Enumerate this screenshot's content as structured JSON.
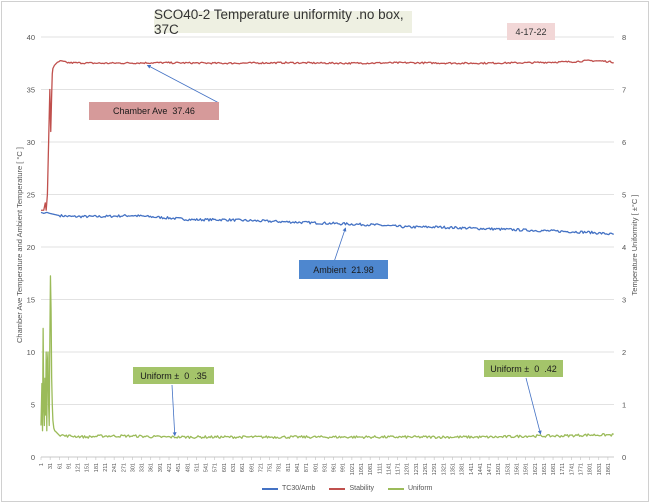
{
  "chart_data": {
    "type": "line",
    "title": "SCO40-2  Temperature uniformity .no box, 37C",
    "date_label": "4-17-22",
    "ylabel_left": "Chamber Ave Temperature and Ambient Temperature [ °C ]",
    "ylabel_right": "Temperature Uniformity [ ±°C ]",
    "ylim_left": [
      0,
      40
    ],
    "ylim_right": [
      0,
      8
    ],
    "yticks_left": [
      "0",
      "5",
      "10",
      "15",
      "20",
      "25",
      "30",
      "35",
      "40"
    ],
    "yticks_right": [
      "0",
      "1",
      "2",
      "3",
      "4",
      "5",
      "6",
      "7",
      "8"
    ],
    "xlim": [
      1,
      1881
    ],
    "xticks": [
      "1",
      "31",
      "61",
      "91",
      "121",
      "151",
      "181",
      "211",
      "241",
      "271",
      "301",
      "331",
      "361",
      "391",
      "421",
      "451",
      "481",
      "511",
      "541",
      "571",
      "601",
      "631",
      "661",
      "691",
      "721",
      "751",
      "781",
      "811",
      "841",
      "871",
      "901",
      "931",
      "961",
      "991",
      "1021",
      "1051",
      "1081",
      "1111",
      "1141",
      "1171",
      "1201",
      "1231",
      "1261",
      "1291",
      "1321",
      "1351",
      "1381",
      "1411",
      "1441",
      "1471",
      "1501",
      "1531",
      "1561",
      "1591",
      "1621",
      "1651",
      "1681",
      "1711",
      "1741",
      "1771",
      "1801",
      "1831",
      "1861"
    ],
    "grid": "horizontal",
    "legend_position": "bottom",
    "series": [
      {
        "name": "TC30/Amb",
        "axis": "left",
        "color": "#4472c4",
        "x": [
          1,
          10,
          20,
          30,
          60,
          100,
          200,
          300,
          400,
          500,
          600,
          700,
          800,
          900,
          1000,
          1100,
          1200,
          1300,
          1400,
          1500,
          1600,
          1700,
          1800,
          1880
        ],
        "y": [
          23.3,
          23.2,
          23.3,
          23.2,
          23.0,
          22.9,
          22.9,
          23.0,
          22.8,
          22.6,
          22.6,
          22.5,
          22.4,
          22.3,
          22.2,
          22.1,
          21.9,
          21.9,
          21.8,
          21.7,
          21.6,
          21.5,
          21.4,
          21.2
        ]
      },
      {
        "name": "Stability",
        "axis": "left",
        "color": "#c0504d",
        "x": [
          1,
          10,
          15,
          18,
          22,
          26,
          30,
          33,
          36,
          38,
          40,
          45,
          55,
          65,
          90,
          200,
          400,
          600,
          800,
          1000,
          1200,
          1400,
          1600,
          1750,
          1800,
          1850,
          1880
        ],
        "y": [
          23.5,
          23.5,
          24.2,
          23.5,
          25.0,
          30.0,
          35.0,
          31.0,
          34.5,
          36.5,
          37.0,
          37.3,
          37.6,
          37.7,
          37.55,
          37.5,
          37.55,
          37.5,
          37.55,
          37.5,
          37.55,
          37.5,
          37.55,
          37.65,
          37.75,
          37.7,
          37.6
        ]
      },
      {
        "name": "Uniform",
        "axis": "right",
        "color": "#9bbb59",
        "x": [
          1,
          4,
          6,
          8,
          10,
          12,
          14,
          16,
          18,
          20,
          22,
          24,
          26,
          28,
          30,
          32,
          34,
          36,
          38,
          40,
          43,
          46,
          50,
          55,
          60,
          70,
          80,
          100,
          150,
          200,
          300,
          400,
          500,
          600,
          700,
          800,
          900,
          1000,
          1100,
          1200,
          1300,
          1400,
          1500,
          1600,
          1700,
          1800,
          1880
        ],
        "y": [
          0.6,
          1.4,
          0.5,
          2.45,
          1.0,
          0.6,
          1.5,
          0.8,
          2.0,
          0.5,
          1.8,
          2.0,
          1.0,
          0.6,
          2.2,
          3.45,
          2.8,
          1.5,
          1.0,
          0.7,
          0.55,
          0.5,
          0.48,
          0.45,
          0.42,
          0.42,
          0.4,
          0.4,
          0.38,
          0.4,
          0.4,
          0.38,
          0.38,
          0.38,
          0.38,
          0.38,
          0.38,
          0.38,
          0.38,
          0.38,
          0.38,
          0.38,
          0.38,
          0.4,
          0.4,
          0.42,
          0.42
        ]
      }
    ],
    "annotations": [
      {
        "text": "Chamber Ave  37.46",
        "target_series": "Stability",
        "target_x": 350,
        "target_y": 37.5
      },
      {
        "text": "Ambient  21.98",
        "target_series": "TC30/Amb",
        "target_x": 1000,
        "target_y": 22.1
      },
      {
        "text": "Uniform ±  0  .35",
        "target_series": "Uniform",
        "target_x": 440,
        "target_y": 0.37
      },
      {
        "text": "Uniform ±  0  .42",
        "target_series": "Uniform",
        "target_x": 1640,
        "target_y": 0.4
      }
    ]
  }
}
